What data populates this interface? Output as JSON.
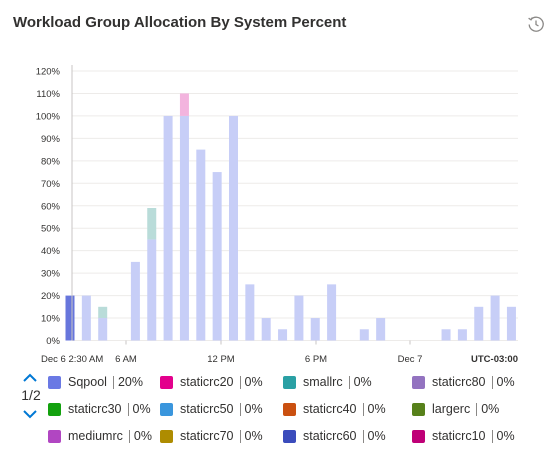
{
  "header": {
    "title": "Workload Group Allocation By System Percent",
    "history_icon": "history-icon"
  },
  "chart_data": {
    "type": "bar",
    "stacked": true,
    "ylim": [
      0,
      120
    ],
    "yticks": [
      "0%",
      "10%",
      "20%",
      "30%",
      "40%",
      "50%",
      "60%",
      "70%",
      "80%",
      "90%",
      "100%",
      "110%",
      "120%"
    ],
    "grid": true,
    "x_tick_labels": [
      "Dec 6 2:30 AM",
      "6 AM",
      "12 PM",
      "6 PM",
      "Dec 7",
      "UTC-03:00"
    ],
    "series": [
      {
        "name": "Sqpool",
        "color": "#c7cef7",
        "values": [
          20,
          20,
          10,
          0,
          35,
          45,
          100,
          100,
          85,
          75,
          100,
          25,
          10,
          5,
          20,
          10,
          25,
          0,
          5,
          10,
          0,
          0,
          0,
          5,
          5,
          15,
          20,
          15
        ]
      },
      {
        "name": "smallrc",
        "color": "#b9dcd9",
        "values": [
          0,
          0,
          5,
          0,
          0,
          14,
          0,
          0,
          0,
          0,
          0,
          0,
          0,
          0,
          0,
          0,
          0,
          0,
          0,
          0,
          0,
          0,
          0,
          0,
          0,
          0,
          0,
          0
        ]
      },
      {
        "name": "staticrc20",
        "color": "#f3b4de",
        "values": [
          0,
          0,
          0,
          0,
          0,
          0,
          0,
          10,
          0,
          0,
          0,
          0,
          0,
          0,
          0,
          0,
          0,
          0,
          0,
          0,
          0,
          0,
          0,
          0,
          0,
          0,
          0,
          0
        ]
      }
    ],
    "highlighted_bar": {
      "index": 0,
      "value": 20,
      "color": "#6776dc"
    }
  },
  "legend": {
    "page_label": "1/2",
    "rows": [
      [
        {
          "name": "Sqpool",
          "value": "20%",
          "color": "#6a79e4"
        },
        {
          "name": "staticrc20",
          "value": "0%",
          "color": "#e3008c"
        },
        {
          "name": "smallrc",
          "value": "0%",
          "color": "#2aa0a4"
        },
        {
          "name": "staticrc80",
          "value": "0%",
          "color": "#9373c0"
        }
      ],
      [
        {
          "name": "staticrc30",
          "value": "0%",
          "color": "#13a10e"
        },
        {
          "name": "staticrc50",
          "value": "0%",
          "color": "#3a96dd"
        },
        {
          "name": "staticrc40",
          "value": "0%",
          "color": "#ca5010"
        },
        {
          "name": "largerc",
          "value": "0%",
          "color": "#57811b"
        }
      ],
      [
        {
          "name": "mediumrc",
          "value": "0%",
          "color": "#b146c2"
        },
        {
          "name": "staticrc70",
          "value": "0%",
          "color": "#ae8c00"
        },
        {
          "name": "staticrc60",
          "value": "0%",
          "color": "#3b4cbc"
        },
        {
          "name": "staticrc10",
          "value": "0%",
          "color": "#bf0077"
        }
      ]
    ]
  }
}
